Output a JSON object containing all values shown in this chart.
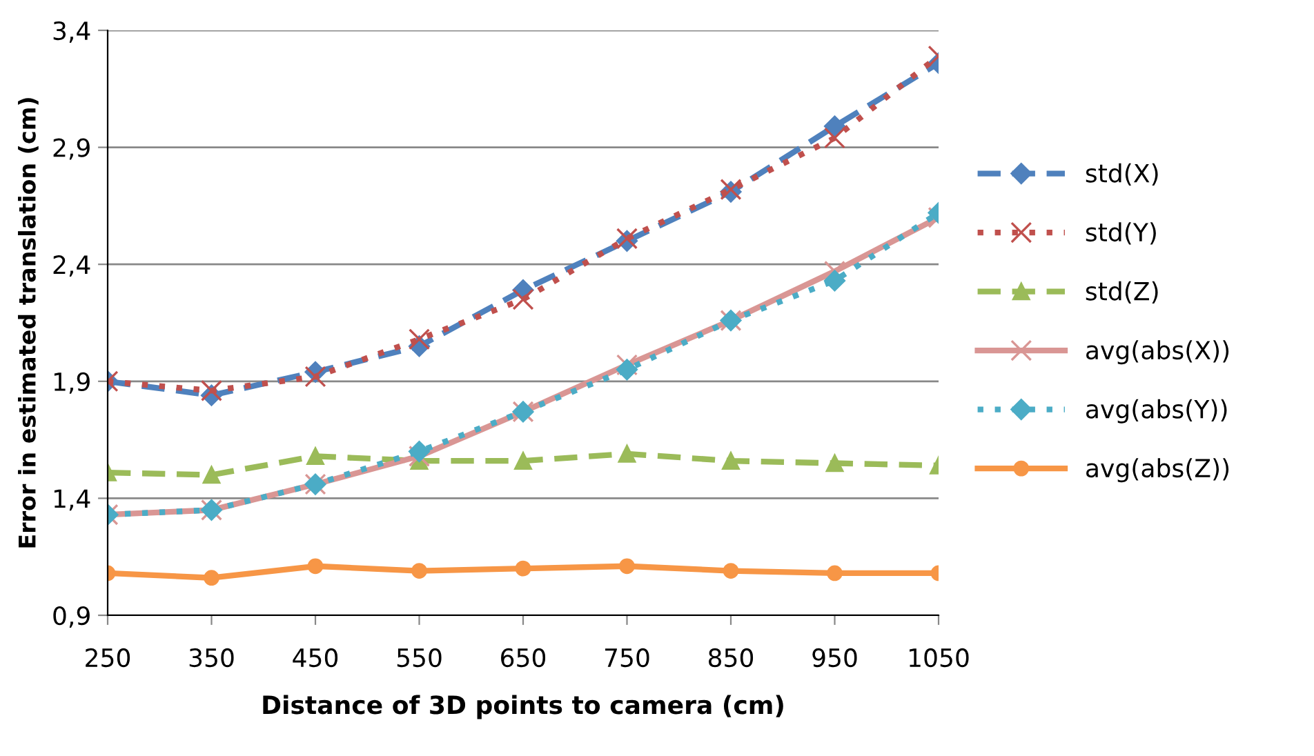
{
  "chart_data": {
    "type": "line",
    "xlabel": "Distance of 3D points to camera (cm)",
    "ylabel": "Error in estimated translation (cm)",
    "categories": [
      "250",
      "350",
      "450",
      "550",
      "650",
      "750",
      "850",
      "950",
      "1050"
    ],
    "ylim": [
      0.9,
      3.4
    ],
    "yticks": [
      {
        "value": 0.9,
        "label": "0,9"
      },
      {
        "value": 1.4,
        "label": "1,4"
      },
      {
        "value": 1.9,
        "label": "1,9"
      },
      {
        "value": 2.4,
        "label": "2,4"
      },
      {
        "value": 2.9,
        "label": "2,9"
      },
      {
        "value": 3.4,
        "label": "3,4"
      }
    ],
    "grid": "y",
    "legend": "right",
    "series": [
      {
        "name": "std(X)",
        "color": "#4f81bd",
        "marker": "diamond",
        "line_style": "dashed",
        "values": [
          1.9,
          1.84,
          1.94,
          2.05,
          2.29,
          2.5,
          2.71,
          2.99,
          3.26
        ]
      },
      {
        "name": "std(Y)",
        "color": "#c0504d",
        "marker": "cross",
        "line_style": "dotted",
        "values": [
          1.9,
          1.86,
          1.92,
          2.08,
          2.25,
          2.51,
          2.72,
          2.94,
          3.29
        ]
      },
      {
        "name": "std(Z)",
        "color": "#9bbb59",
        "marker": "triangle",
        "line_style": "dashed",
        "values": [
          1.51,
          1.5,
          1.58,
          1.56,
          1.56,
          1.59,
          1.56,
          1.55,
          1.54
        ]
      },
      {
        "name": "avg(abs(X))",
        "color": "#d99694",
        "marker": "cross",
        "line_style": "solid",
        "values": [
          1.33,
          1.35,
          1.46,
          1.58,
          1.77,
          1.97,
          2.16,
          2.37,
          2.6
        ]
      },
      {
        "name": "avg(abs(Y))",
        "color": "#4bacc6",
        "marker": "diamond",
        "line_style": "dotted",
        "values": [
          1.33,
          1.35,
          1.46,
          1.6,
          1.77,
          1.95,
          2.16,
          2.33,
          2.62
        ]
      },
      {
        "name": "avg(abs(Z))",
        "color": "#f79646",
        "marker": "circle",
        "line_style": "solid",
        "values": [
          1.08,
          1.06,
          1.11,
          1.09,
          1.1,
          1.11,
          1.09,
          1.08,
          1.08
        ]
      }
    ]
  }
}
